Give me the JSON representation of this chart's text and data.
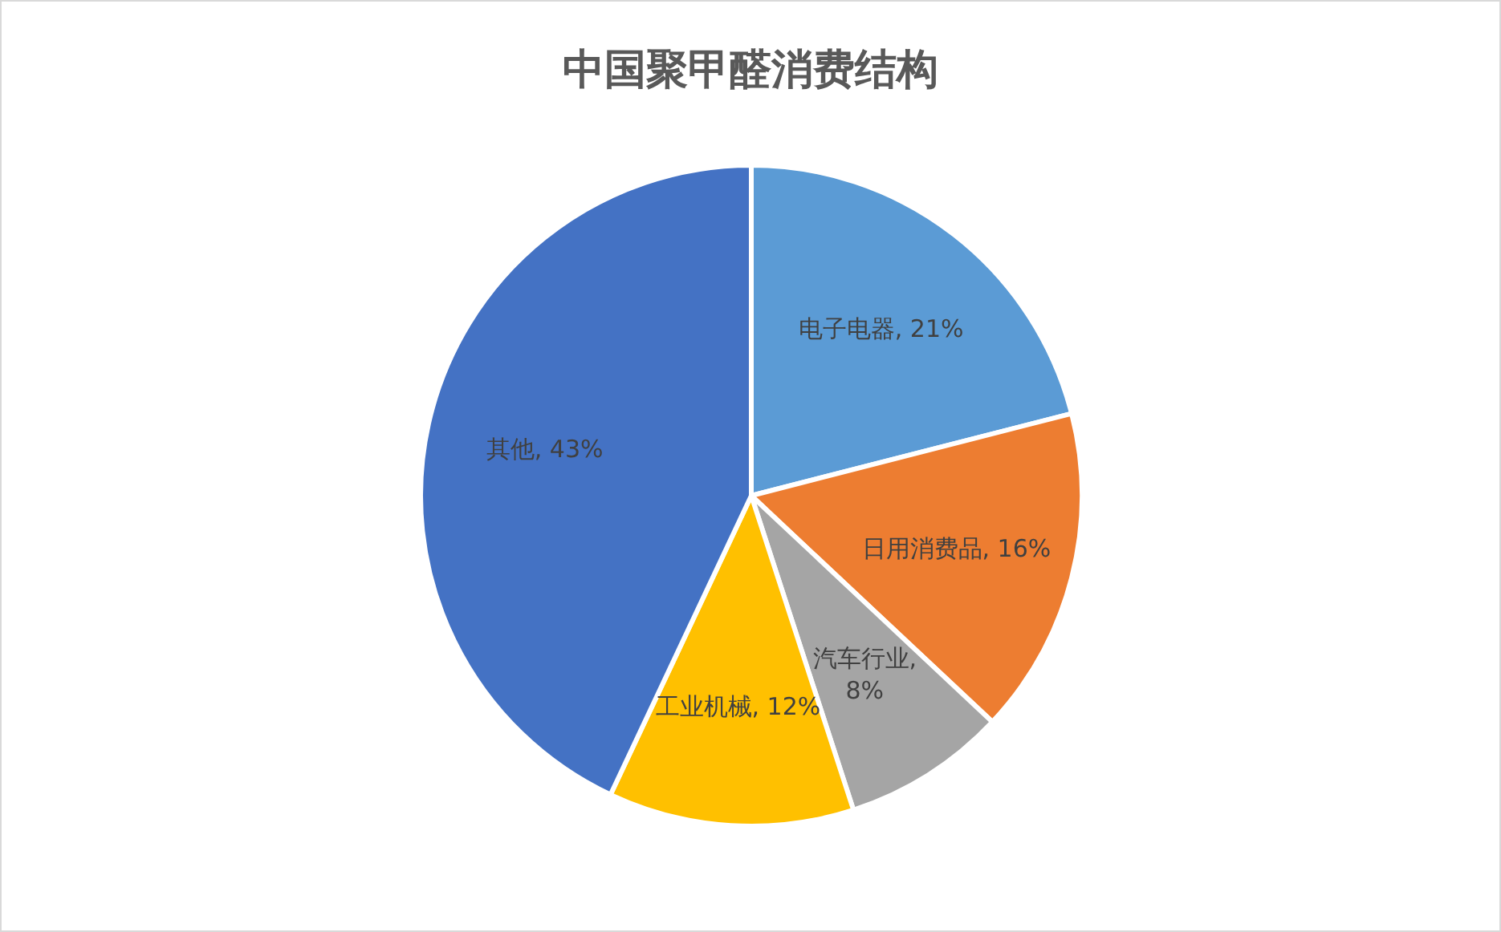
{
  "chart_data": {
    "type": "pie",
    "title": "中国聚甲醛消费结构",
    "categories": [
      "电子电器",
      "日用消费品",
      "汽车行业",
      "工业机械",
      "其他"
    ],
    "values": [
      21,
      16,
      8,
      12,
      43
    ],
    "colors": [
      "#5b9bd5",
      "#ed7d31",
      "#a5a5a5",
      "#ffc000",
      "#4472c4"
    ],
    "value_labels": [
      ", 21%",
      ", 16%",
      ", 8%",
      ", 12%",
      ", 43%"
    ],
    "legend": false
  }
}
